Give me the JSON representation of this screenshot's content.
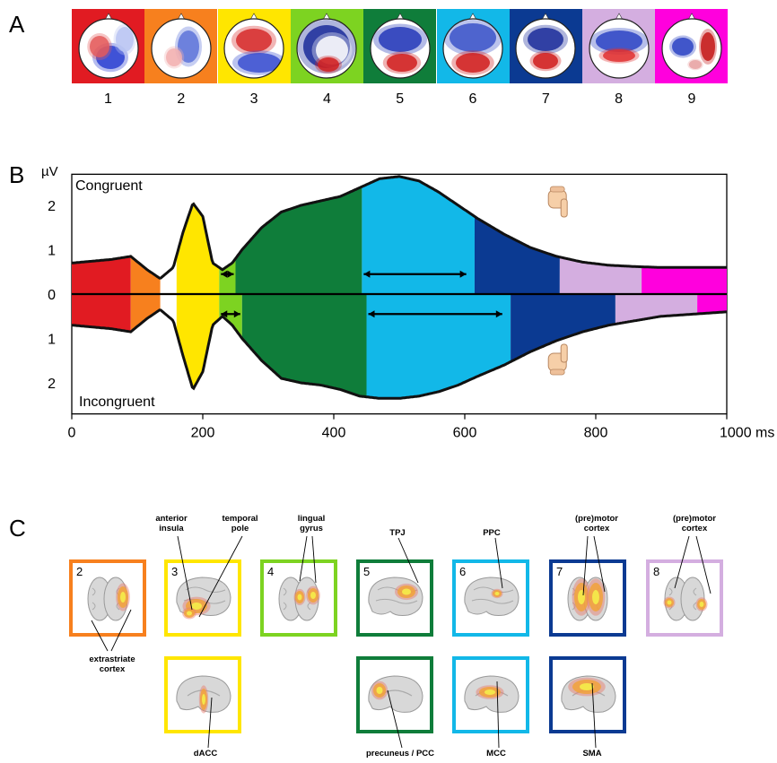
{
  "panels": {
    "a": "A",
    "b": "B",
    "c": "C"
  },
  "topomaps": [
    {
      "num": "1",
      "bg": "#e11b22"
    },
    {
      "num": "2",
      "bg": "#f7801e"
    },
    {
      "num": "3",
      "bg": "#ffe600"
    },
    {
      "num": "4",
      "bg": "#7dd321"
    },
    {
      "num": "5",
      "bg": "#0f7d3a"
    },
    {
      "num": "6",
      "bg": "#12b8e8"
    },
    {
      "num": "7",
      "bg": "#0b3a92"
    },
    {
      "num": "8",
      "bg": "#d4aee0"
    },
    {
      "num": "9",
      "bg": "#ff00dd"
    }
  ],
  "erp": {
    "y_unit": "µV",
    "top_label": "Congruent",
    "bottom_label": "Incongruent",
    "y_ticks_top": [
      "2",
      "1"
    ],
    "zero": "0",
    "y_ticks_bottom": [
      "1",
      "2"
    ],
    "x_ticks": [
      "0",
      "200",
      "400",
      "600",
      "800",
      "1000 ms"
    ]
  },
  "chart_data": {
    "type": "area",
    "x_unit": "ms",
    "y_unit": "µV",
    "xlim": [
      0,
      1000
    ],
    "ylim": [
      -2.5,
      2.5
    ],
    "congruent": {
      "x": [
        0,
        60,
        90,
        115,
        135,
        155,
        170,
        185,
        200,
        215,
        230,
        245,
        260,
        290,
        320,
        350,
        380,
        410,
        440,
        470,
        500,
        530,
        560,
        590,
        620,
        660,
        700,
        740,
        780,
        820,
        860,
        900,
        950,
        1000
      ],
      "y": [
        0.7,
        0.78,
        0.85,
        0.55,
        0.35,
        0.6,
        1.4,
        2.05,
        1.75,
        0.7,
        0.55,
        0.7,
        1.0,
        1.5,
        1.85,
        2.0,
        2.1,
        2.2,
        2.4,
        2.6,
        2.65,
        2.55,
        2.3,
        2.0,
        1.7,
        1.35,
        1.05,
        0.85,
        0.72,
        0.65,
        0.62,
        0.6,
        0.6,
        0.6
      ],
      "segments": [
        {
          "component": 1,
          "start": 0,
          "end": 90
        },
        {
          "component": 2,
          "start": 90,
          "end": 135
        },
        {
          "component": 3,
          "start": 160,
          "end": 225
        },
        {
          "component": 4,
          "start": 225,
          "end": 250
        },
        {
          "component": 5,
          "start": 250,
          "end": 443
        },
        {
          "component": 6,
          "start": 443,
          "end": 615
        },
        {
          "component": 7,
          "start": 615,
          "end": 745
        },
        {
          "component": 8,
          "start": 745,
          "end": 870
        },
        {
          "component": 9,
          "start": 870,
          "end": 1000
        }
      ],
      "arrows": [
        [
          225,
          250
        ],
        [
          443,
          605
        ]
      ]
    },
    "incongruent": {
      "x": [
        0,
        60,
        90,
        115,
        135,
        155,
        170,
        185,
        200,
        215,
        230,
        245,
        260,
        290,
        320,
        350,
        380,
        410,
        440,
        470,
        500,
        530,
        560,
        590,
        620,
        660,
        700,
        740,
        780,
        820,
        860,
        900,
        950,
        1000
      ],
      "y": [
        -0.7,
        -0.78,
        -0.85,
        -0.55,
        -0.35,
        -0.6,
        -1.4,
        -2.15,
        -1.75,
        -0.7,
        -0.5,
        -0.7,
        -1.0,
        -1.5,
        -1.9,
        -2.0,
        -2.05,
        -2.15,
        -2.3,
        -2.35,
        -2.35,
        -2.3,
        -2.2,
        -2.05,
        -1.85,
        -1.6,
        -1.3,
        -1.05,
        -0.85,
        -0.7,
        -0.6,
        -0.5,
        -0.45,
        -0.4
      ],
      "segments": [
        {
          "component": 1,
          "start": 0,
          "end": 90
        },
        {
          "component": 2,
          "start": 90,
          "end": 135
        },
        {
          "component": 3,
          "start": 160,
          "end": 225
        },
        {
          "component": 4,
          "start": 225,
          "end": 260
        },
        {
          "component": 5,
          "start": 260,
          "end": 450
        },
        {
          "component": 6,
          "start": 450,
          "end": 670
        },
        {
          "component": 7,
          "start": 670,
          "end": 830
        },
        {
          "component": 8,
          "start": 830,
          "end": 955
        },
        {
          "component": 9,
          "start": 955,
          "end": 1000
        }
      ],
      "arrows": [
        [
          225,
          260
        ],
        [
          450,
          660
        ]
      ]
    }
  },
  "icons": {
    "top_hand": "pointing-hand-down-icon",
    "bottom_hand": "pointing-hand-up-icon"
  },
  "brain_panels": [
    {
      "num": "2",
      "color": "#f7801e"
    },
    {
      "num": "3",
      "color": "#ffe600"
    },
    {
      "num": "4",
      "color": "#7dd321"
    },
    {
      "num": "5",
      "color": "#0f7d3a"
    },
    {
      "num": "6",
      "color": "#12b8e8"
    },
    {
      "num": "7",
      "color": "#0b3a92"
    },
    {
      "num": "8",
      "color": "#d4aee0"
    },
    {
      "num": "",
      "color": "#ffe600"
    },
    {
      "num": "",
      "color": "#0f7d3a"
    },
    {
      "num": "",
      "color": "#12b8e8"
    },
    {
      "num": "",
      "color": "#0b3a92"
    }
  ],
  "region_labels": {
    "anterior_insula": "anterior insula",
    "temporal_pole": "temporal pole",
    "lingual_gyrus": "lingual gyrus",
    "tpj": "TPJ",
    "ppc": "PPC",
    "premotor_7": "(pre)motor cortex",
    "premotor_8": "(pre)motor cortex",
    "extrastriate": "extrastriate cortex",
    "dacc": "dACC",
    "precuneus": "precuneus / PCC",
    "mcc": "MCC",
    "sma": "SMA"
  }
}
